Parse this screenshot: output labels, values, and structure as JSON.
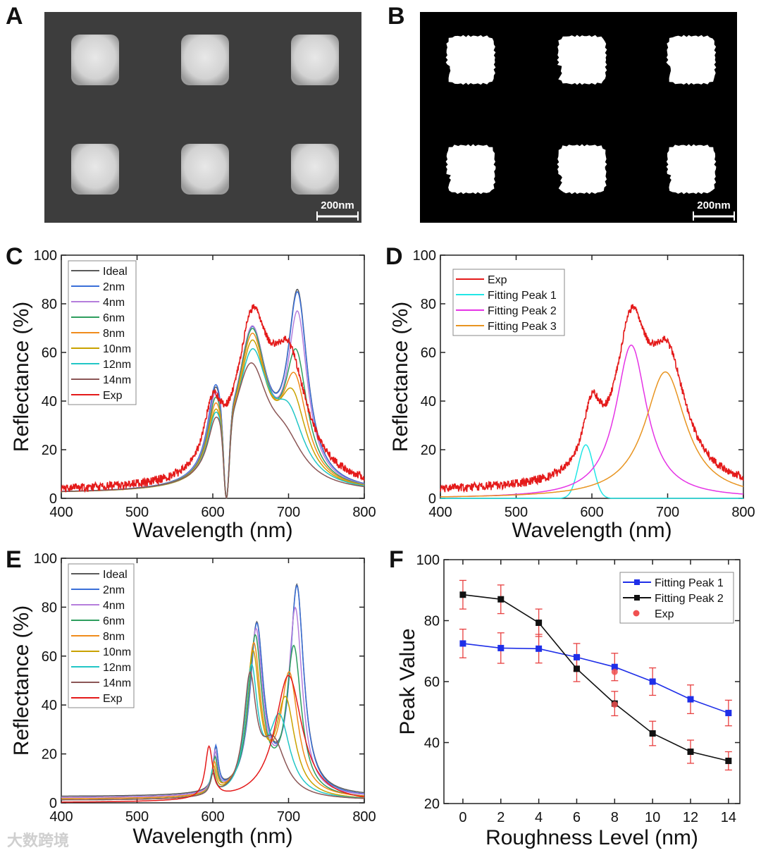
{
  "panel_labels": [
    "A",
    "B",
    "C",
    "D",
    "E",
    "F"
  ],
  "images": {
    "A": {
      "description_type": "sem",
      "scale_bar": "200nm"
    },
    "B": {
      "description_type": "binary",
      "scale_bar": "200nm"
    }
  },
  "watermark": "大数跨境",
  "colors": {
    "Ideal": "#5a5a5a",
    "2nm": "#3a6fd8",
    "4nm": "#b57edc",
    "6nm": "#2e9e5e",
    "8nm": "#f08c1c",
    "10nm": "#c9a200",
    "12nm": "#22c6c6",
    "14nm": "#8b5656",
    "Exp": "#e41a1a",
    "Fitting Peak 1": "#22e6e6",
    "Fitting Peak 2": "#e533e5",
    "Fitting Peak 3": "#e89420",
    "F Peak 1": "#1f2fe8",
    "F Peak 2": "#111111",
    "F Exp": "#f05050"
  },
  "chart_data": [
    {
      "id": "C",
      "type": "line",
      "xlabel": "Wavelength (nm)",
      "ylabel": "Reflectance (%)",
      "xlim": [
        400,
        800
      ],
      "ylim": [
        0,
        100
      ],
      "xticks": [
        "400",
        "500",
        "600",
        "700",
        "800"
      ],
      "yticks": [
        "0",
        "20",
        "40",
        "60",
        "80",
        "100"
      ],
      "legend": "top-left",
      "model": "baseline + sum of Lorentzian peaks [center_nm, amplitude_%, halfwidth_nm]",
      "series": [
        {
          "name": "Ideal",
          "baseline": 2,
          "dip": 618,
          "peaks": [
            [
              603,
              30,
              12
            ],
            [
              652,
              62,
              24
            ],
            [
              712,
              75,
              16
            ]
          ]
        },
        {
          "name": "2nm",
          "baseline": 2,
          "dip": 618,
          "peaks": [
            [
              603,
              31,
              12
            ],
            [
              652,
              62,
              24
            ],
            [
              712,
              74,
              16
            ]
          ]
        },
        {
          "name": "4nm",
          "baseline": 2,
          "dip": 618,
          "peaks": [
            [
              603,
              28,
              12
            ],
            [
              652,
              63,
              24
            ],
            [
              712,
              66,
              16
            ]
          ]
        },
        {
          "name": "6nm",
          "baseline": 2,
          "dip": 618,
          "peaks": [
            [
              603,
              26,
              12
            ],
            [
              652,
              62,
              24
            ],
            [
              710,
              50,
              18
            ]
          ]
        },
        {
          "name": "8nm",
          "baseline": 2,
          "dip": 618,
          "peaks": [
            [
              603,
              24,
              12
            ],
            [
              652,
              60,
              24
            ],
            [
              708,
              40,
              20
            ]
          ]
        },
        {
          "name": "10nm",
          "baseline": 2,
          "dip": 618,
          "peaks": [
            [
              603,
              22,
              12
            ],
            [
              652,
              57,
              24
            ],
            [
              705,
              33,
              22
            ]
          ]
        },
        {
          "name": "12nm",
          "baseline": 2,
          "dip": 618,
          "peaks": [
            [
              603,
              20,
              12
            ],
            [
              652,
              53,
              26
            ],
            [
              700,
              25,
              25
            ]
          ]
        },
        {
          "name": "14nm",
          "baseline": 2,
          "dip": 618,
          "peaks": [
            [
              603,
              17,
              12
            ],
            [
              650,
              48,
              28
            ],
            [
              695,
              15,
              30
            ]
          ]
        },
        {
          "name": "Exp",
          "baseline": 3,
          "noise": 1.5,
          "peaks": [
            [
              600,
              25,
              14
            ],
            [
              652,
              60,
              25
            ],
            [
              700,
              48,
              30
            ]
          ]
        }
      ]
    },
    {
      "id": "D",
      "type": "line",
      "xlabel": "Wavelength (nm)",
      "ylabel": "Reflectance (%)",
      "xlim": [
        400,
        800
      ],
      "ylim": [
        0,
        100
      ],
      "xticks": [
        "400",
        "500",
        "600",
        "700",
        "800"
      ],
      "yticks": [
        "0",
        "20",
        "40",
        "60",
        "80",
        "100"
      ],
      "legend": "top-left",
      "series": [
        {
          "name": "Exp",
          "baseline": 3,
          "noise": 1.5,
          "peaks": [
            [
              600,
              25,
              14
            ],
            [
              652,
              60,
              25
            ],
            [
              700,
              48,
              30
            ]
          ]
        },
        {
          "name": "Fitting Peak 1",
          "baseline": 0,
          "gauss": true,
          "peaks": [
            [
              592,
              22,
              14
            ]
          ]
        },
        {
          "name": "Fitting Peak 2",
          "baseline": 0,
          "peaks": [
            [
              652,
              63,
              25
            ]
          ]
        },
        {
          "name": "Fitting Peak 3",
          "baseline": 0,
          "peaks": [
            [
              697,
              52,
              33
            ]
          ]
        }
      ]
    },
    {
      "id": "E",
      "type": "line",
      "xlabel": "Wavelength (nm)",
      "ylabel": "Reflectance (%)",
      "xlim": [
        400,
        800
      ],
      "ylim": [
        0,
        100
      ],
      "xticks": [
        "400",
        "500",
        "600",
        "700",
        "800"
      ],
      "yticks": [
        "0",
        "20",
        "40",
        "60",
        "80",
        "100"
      ],
      "legend": "top-left",
      "series": [
        {
          "name": "Ideal",
          "baseline": 2.5,
          "peaks": [
            [
              604,
              17,
              4
            ],
            [
              658,
              68,
              11
            ],
            [
              711,
              84,
              11
            ]
          ]
        },
        {
          "name": "2nm",
          "baseline": 2,
          "peaks": [
            [
              604,
              18,
              4
            ],
            [
              658,
              68,
              11
            ],
            [
              711,
              84,
              11
            ]
          ]
        },
        {
          "name": "4nm",
          "baseline": 2,
          "peaks": [
            [
              603,
              16,
              4
            ],
            [
              657,
              66,
              11
            ],
            [
              709,
              75,
              11
            ]
          ]
        },
        {
          "name": "6nm",
          "baseline": 1.5,
          "peaks": [
            [
              603,
              14,
              4
            ],
            [
              656,
              64,
              11
            ],
            [
              707,
              60,
              12
            ]
          ]
        },
        {
          "name": "8nm",
          "baseline": 1.5,
          "peaks": [
            [
              602,
              12,
              4
            ],
            [
              654,
              60,
              11
            ],
            [
              701,
              49,
              14
            ]
          ]
        },
        {
          "name": "10nm",
          "baseline": 1,
          "peaks": [
            [
              601,
              11,
              4
            ],
            [
              653,
              57,
              11
            ],
            [
              696,
              39,
              15
            ]
          ]
        },
        {
          "name": "12nm",
          "baseline": 1,
          "peaks": [
            [
              600,
              10,
              4
            ],
            [
              651,
              50,
              10
            ],
            [
              688,
              32,
              17
            ]
          ]
        },
        {
          "name": "14nm",
          "baseline": 1,
          "peaks": [
            [
              600,
              8,
              4
            ],
            [
              649,
              46,
              10
            ],
            [
              680,
              22,
              20
            ]
          ]
        },
        {
          "name": "Exp",
          "baseline": 0,
          "peaks": [
            [
              595,
              21,
              6
            ],
            [
              700,
              52,
              22
            ]
          ]
        }
      ]
    },
    {
      "id": "F",
      "type": "line",
      "xlabel": "Roughness Level (nm)",
      "ylabel": "Peak Value",
      "xlim": [
        -1,
        14.6
      ],
      "ylim": [
        20,
        100
      ],
      "xticks": [
        "0",
        "2",
        "4",
        "6",
        "8",
        "10",
        "12",
        "14"
      ],
      "yticks": [
        "20",
        "40",
        "60",
        "80",
        "100"
      ],
      "legend": "top-right",
      "x": [
        0,
        2,
        4,
        6,
        8,
        10,
        12,
        14
      ],
      "series": [
        {
          "name": "Fitting Peak 1",
          "values": [
            72.5,
            71,
            70.8,
            68,
            64.8,
            60,
            54.2,
            49.7
          ],
          "errors": [
            4.7,
            5,
            4.7,
            4.5,
            4.5,
            4.5,
            4.7,
            4.2
          ]
        },
        {
          "name": "Fitting Peak 2",
          "values": [
            88.5,
            87,
            79.3,
            64.2,
            52.8,
            43,
            37,
            34
          ],
          "errors": [
            4.7,
            4.7,
            4.5,
            4.2,
            4,
            4,
            3.8,
            3
          ]
        },
        {
          "name": "Exp",
          "x": [
            8,
            8
          ],
          "values": [
            63.2,
            52.5
          ]
        }
      ]
    }
  ]
}
